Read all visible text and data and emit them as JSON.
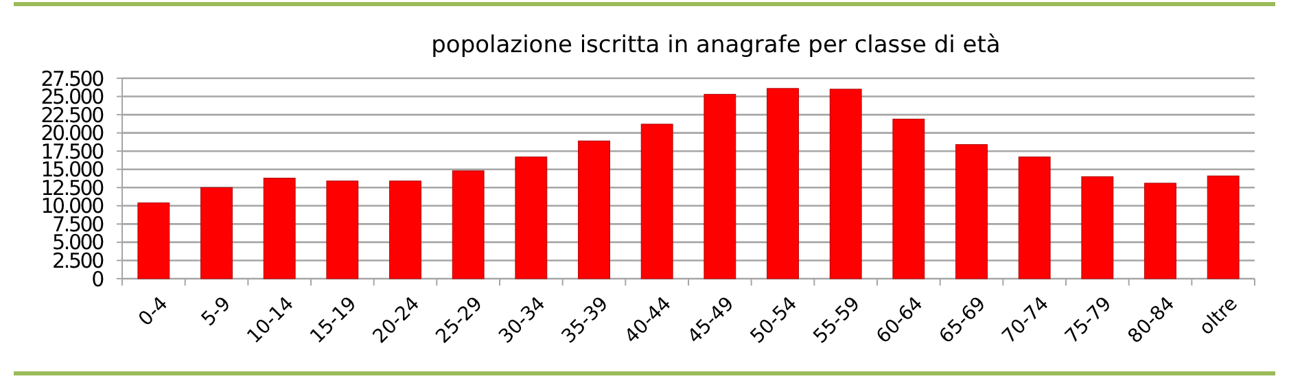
{
  "chart_data": {
    "type": "bar",
    "title": "popolazione iscritta in anagrafe per classe di età",
    "categories": [
      "0-4",
      "5-9",
      "10-14",
      "15-19",
      "20-24",
      "25-29",
      "30-34",
      "35-39",
      "40-44",
      "45-49",
      "50-54",
      "55-59",
      "60-64",
      "65-69",
      "70-74",
      "75-79",
      "80-84",
      "oltre"
    ],
    "values": [
      10400,
      12500,
      13800,
      13400,
      13400,
      14800,
      16700,
      18900,
      21200,
      25300,
      26100,
      26000,
      21900,
      18400,
      16700,
      14000,
      13100,
      14100
    ],
    "color": "#ff0000",
    "ylim": [
      0,
      27500
    ],
    "yticks": [
      0,
      {
        "value": 2500,
        "label": "2.500"
      },
      {
        "value": 5000,
        "label": "5.000"
      },
      {
        "value": 7500,
        "label": "7.500"
      },
      {
        "value": 10000,
        "label": "10.000"
      },
      {
        "value": 12500,
        "label": "12.500"
      },
      {
        "value": 15000,
        "label": "15.000"
      },
      {
        "value": 17500,
        "label": "17.500"
      },
      {
        "value": 20000,
        "label": "20.000"
      },
      {
        "value": 22500,
        "label": "22.500"
      },
      {
        "value": 25000,
        "label": "25.000"
      },
      {
        "value": 27500,
        "label": "27.500"
      }
    ],
    "grid": "y"
  }
}
